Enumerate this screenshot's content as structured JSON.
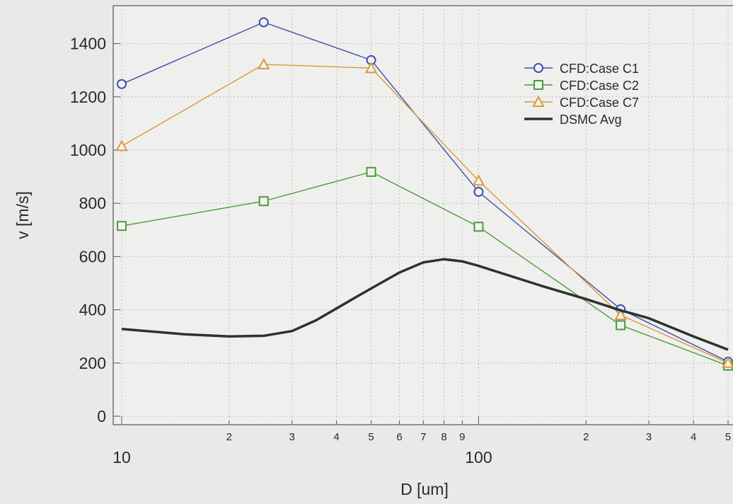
{
  "chart_data": {
    "type": "line",
    "title": "",
    "xlabel": "D [um]",
    "ylabel": "v [m/s]",
    "x_scale": "log",
    "xlim": [
      10,
      500
    ],
    "ylim": [
      0,
      1500
    ],
    "x_major_ticks": [
      {
        "value": 10,
        "label": "10"
      },
      {
        "value": 100,
        "label": "100"
      }
    ],
    "x_minor_ticks": [
      {
        "value": 20,
        "label": "2"
      },
      {
        "value": 30,
        "label": "3"
      },
      {
        "value": 40,
        "label": "4"
      },
      {
        "value": 50,
        "label": "5"
      },
      {
        "value": 60,
        "label": "6"
      },
      {
        "value": 70,
        "label": "7"
      },
      {
        "value": 80,
        "label": "8"
      },
      {
        "value": 90,
        "label": "9"
      },
      {
        "value": 200,
        "label": "2"
      },
      {
        "value": 300,
        "label": "3"
      },
      {
        "value": 400,
        "label": "4"
      },
      {
        "value": 500,
        "label": "5"
      }
    ],
    "y_ticks": [
      {
        "value": 0,
        "label": "0"
      },
      {
        "value": 200,
        "label": "200"
      },
      {
        "value": 400,
        "label": "400"
      },
      {
        "value": 600,
        "label": "600"
      },
      {
        "value": 800,
        "label": "800"
      },
      {
        "value": 1000,
        "label": "1000"
      },
      {
        "value": 1200,
        "label": "1200"
      },
      {
        "value": 1400,
        "label": "1400"
      }
    ],
    "grid": true,
    "legend_position": "top-right",
    "series": [
      {
        "name": "CFD:Case C1",
        "color": "#3b4fb2",
        "marker": "circle",
        "x": [
          10,
          25,
          50,
          100,
          250,
          500
        ],
        "y": [
          1248,
          1480,
          1338,
          843,
          402,
          205
        ]
      },
      {
        "name": "CFD:Case C2",
        "color": "#4c9a3c",
        "marker": "square",
        "x": [
          10,
          25,
          50,
          100,
          250,
          500
        ],
        "y": [
          715,
          808,
          918,
          712,
          342,
          190
        ]
      },
      {
        "name": "CFD:Case C7",
        "color": "#d99a3a",
        "marker": "triangle",
        "x": [
          10,
          25,
          50,
          100,
          250,
          500
        ],
        "y": [
          1015,
          1322,
          1308,
          885,
          380,
          200
        ]
      },
      {
        "name": "DSMC Avg",
        "color": "#303030",
        "marker": "none",
        "x": [
          10,
          15,
          20,
          25,
          30,
          35,
          40,
          45,
          50,
          60,
          70,
          80,
          90,
          100,
          150,
          200,
          250,
          300,
          400,
          500
        ],
        "y": [
          328,
          308,
          300,
          302,
          320,
          360,
          405,
          445,
          480,
          540,
          578,
          590,
          582,
          565,
          490,
          440,
          398,
          368,
          300,
          250
        ]
      }
    ]
  }
}
